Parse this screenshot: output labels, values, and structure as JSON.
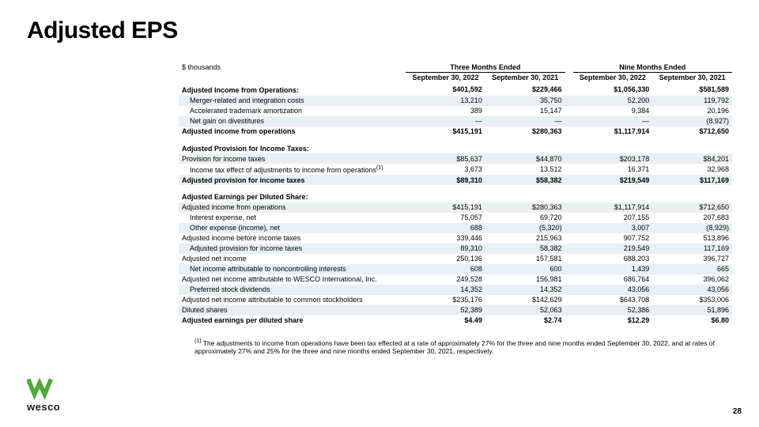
{
  "title": "Adjusted EPS",
  "unit_label": "$ thousands",
  "group_headers": [
    "Three Months Ended",
    "Nine Months Ended"
  ],
  "col_headers": [
    "September 30, 2022",
    "September 30, 2021",
    "September 30, 2022",
    "September 30, 2021"
  ],
  "sections": [
    {
      "title": "Adjusted Income from Operations:",
      "title_values": [
        "$401,592",
        "$229,466",
        "$1,056,330",
        "$581,589"
      ],
      "rows": [
        {
          "label": "Merger-related and integration costs",
          "indent": 1,
          "hl": true,
          "values": [
            "13,210",
            "35,750",
            "52,200",
            "119,792"
          ]
        },
        {
          "label": "Accelerated trademark amortization",
          "indent": 1,
          "values": [
            "389",
            "15,147",
            "9,384",
            "20,196"
          ]
        },
        {
          "label": "Net gain on divestitures",
          "indent": 1,
          "hl": true,
          "values": [
            "—",
            "—",
            "—",
            "(8,927)"
          ]
        }
      ],
      "total": {
        "label": "Adjusted income from operations",
        "values": [
          "$415,191",
          "$280,363",
          "$1,117,914",
          "$712,650"
        ]
      }
    },
    {
      "title": "Adjusted Provision for Income Taxes:",
      "rows": [
        {
          "label": "Provision for income taxes",
          "hl": true,
          "values": [
            "$85,637",
            "$44,870",
            "$203,178",
            "$84,201"
          ]
        },
        {
          "label": "Income tax effect of adjustments to income from operations",
          "indent": 1,
          "sup": "(1)",
          "values": [
            "3,673",
            "13,512",
            "16,371",
            "32,968"
          ]
        }
      ],
      "total": {
        "label": "Adjusted provision for income taxes",
        "hl": true,
        "values": [
          "$89,310",
          "$58,382",
          "$219,549",
          "$117,169"
        ]
      }
    },
    {
      "title": "Adjusted Earnings per Diluted Share:",
      "rows": [
        {
          "label": "Adjusted income from operations",
          "hl": true,
          "values": [
            "$415,191",
            "$280,363",
            "$1,117,914",
            "$712,650"
          ]
        },
        {
          "label": "Interest expense, net",
          "indent": 1,
          "values": [
            "75,057",
            "69,720",
            "207,155",
            "207,683"
          ]
        },
        {
          "label": "Other expense (income), net",
          "indent": 1,
          "hl": true,
          "values": [
            "688",
            "(5,320)",
            "3,007",
            "(8,929)"
          ]
        },
        {
          "label": "Adjusted income before income taxes",
          "values": [
            "339,446",
            "215,963",
            "907,752",
            "513,896"
          ]
        },
        {
          "label": "Adjusted provision for income taxes",
          "indent": 1,
          "hl": true,
          "values": [
            "89,310",
            "58,382",
            "219,549",
            "117,169"
          ]
        },
        {
          "label": "Adjusted net income",
          "values": [
            "250,136",
            "157,581",
            "688,203",
            "396,727"
          ]
        },
        {
          "label": "Net income attributable to noncontrolling interests",
          "indent": 1,
          "hl": true,
          "values": [
            "608",
            "600",
            "1,439",
            "665"
          ]
        },
        {
          "label": "Adjusted net income attributable to WESCO International, Inc.",
          "values": [
            "249,528",
            "156,981",
            "686,764",
            "396,062"
          ]
        },
        {
          "label": "Preferred stock dividends",
          "indent": 1,
          "hl": true,
          "values": [
            "14,352",
            "14,352",
            "43,056",
            "43,056"
          ]
        },
        {
          "label": "Adjusted net income attributable to common stockholders",
          "values": [
            "$235,176",
            "$142,629",
            "$643,708",
            "$353,006"
          ]
        },
        {
          "label": "Diluted shares",
          "hl": true,
          "values": [
            "52,389",
            "52,063",
            "52,386",
            "51,896"
          ]
        }
      ],
      "total": {
        "label": "Adjusted earnings per diluted share",
        "values": [
          "$4.49",
          "$2.74",
          "$12.29",
          "$6.80"
        ]
      }
    }
  ],
  "footnote_marker": "(1)",
  "footnote": " The adjustments to income from operations have been tax effected at a rate of approximately 27% for the three and nine months ended September 30, 2022, and at rates of approximately 27% and 25% for the three and nine months ended September 30, 2021, respectively.",
  "logo_text": "wesco",
  "logo_color": "#4fa838",
  "page_number": "28",
  "colors": {
    "highlight": "#e7f0f5",
    "text": "#000000"
  }
}
